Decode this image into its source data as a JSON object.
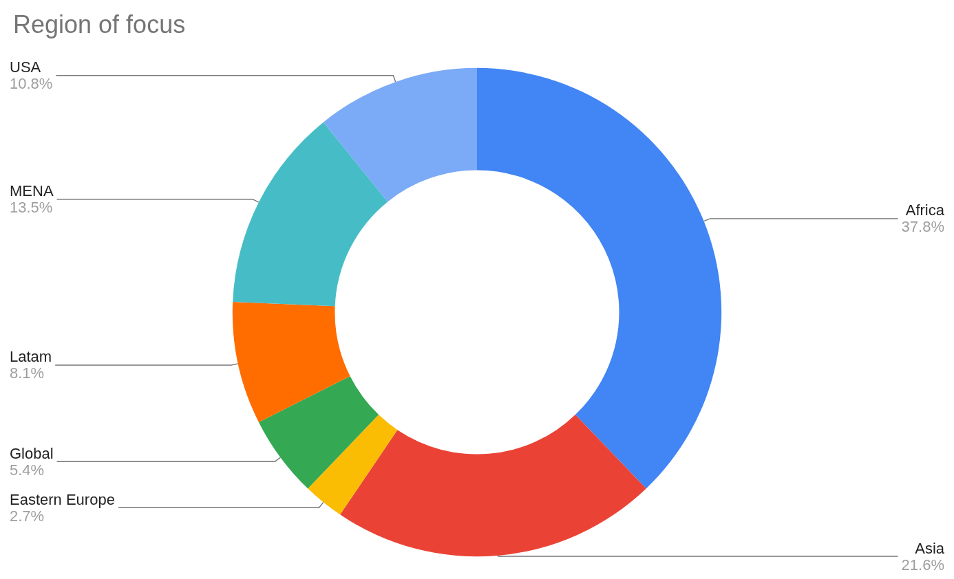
{
  "chart_data": {
    "type": "donut",
    "title": "Region of focus",
    "categories": [
      "Africa",
      "Asia",
      "Eastern Europe",
      "Global",
      "Latam",
      "MENA",
      "USA"
    ],
    "values": [
      37.8,
      21.6,
      2.7,
      5.4,
      8.1,
      13.5,
      10.8
    ],
    "value_labels": [
      "37.8%",
      "21.6%",
      "2.7%",
      "5.4%",
      "8.1%",
      "13.5%",
      "10.8%"
    ],
    "colors": [
      "#4285f4",
      "#ea4335",
      "#fbbc04",
      "#34a853",
      "#ff6d01",
      "#46bdc6",
      "#7baaf7"
    ],
    "legend": false
  }
}
